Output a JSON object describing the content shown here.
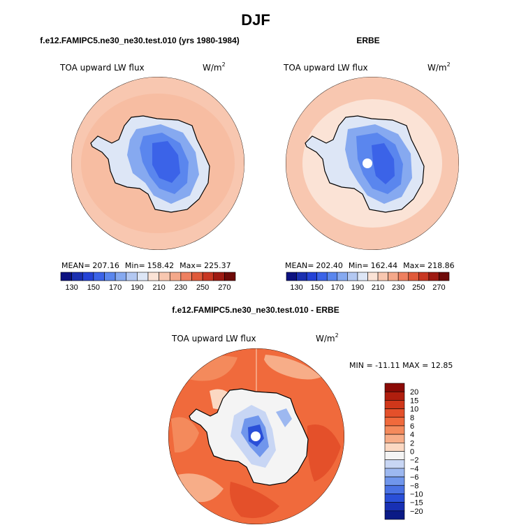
{
  "title": "DJF",
  "chart_data": [
    {
      "type": "heatmap",
      "projection": "south-polar-stereographic",
      "panel_title": "f.e12.FAMIPC5.ne30_ne30.test.010 (yrs 1980-1984)",
      "left_label": "TOA upward LW flux",
      "right_label": "W/m",
      "right_label_sup": "2",
      "stats": {
        "mean_label": "MEAN=",
        "mean": "207.16",
        "min_label": "Min=",
        "min": "158.42",
        "max_label": "Max=",
        "max": "225.37"
      },
      "colorbar_ticks": [
        "130",
        "150",
        "170",
        "190",
        "210",
        "230",
        "250",
        "270"
      ],
      "colorbar_colors": [
        "#0c1180",
        "#1a2fb0",
        "#2442d6",
        "#3b63e8",
        "#5a86ee",
        "#86a9f0",
        "#b3c8f2",
        "#dde6f6",
        "#fbe3d6",
        "#f8c7b0",
        "#f4a88a",
        "#ee8060",
        "#e05a3a",
        "#c83722",
        "#9e1a12",
        "#6e0a08"
      ],
      "value_range": [
        158.42,
        225.37
      ]
    },
    {
      "type": "heatmap",
      "projection": "south-polar-stereographic",
      "panel_title": "ERBE",
      "left_label": "TOA upward LW flux",
      "right_label": "W/m",
      "right_label_sup": "2",
      "stats": {
        "mean_label": "MEAN=",
        "mean": "202.40",
        "min_label": "Min=",
        "min": "162.44",
        "max_label": "Max=",
        "max": "218.86"
      },
      "colorbar_ticks": [
        "130",
        "150",
        "170",
        "190",
        "210",
        "230",
        "250",
        "270"
      ],
      "colorbar_colors": [
        "#0c1180",
        "#1a2fb0",
        "#2442d6",
        "#3b63e8",
        "#5a86ee",
        "#86a9f0",
        "#b3c8f2",
        "#dde6f6",
        "#fbe3d6",
        "#f8c7b0",
        "#f4a88a",
        "#ee8060",
        "#e05a3a",
        "#c83722",
        "#9e1a12",
        "#6e0a08"
      ],
      "value_range": [
        162.44,
        218.86
      ]
    },
    {
      "type": "heatmap",
      "projection": "south-polar-stereographic",
      "panel_title": "f.e12.FAMIPC5.ne30_ne30.test.010 - ERBE",
      "left_label": "TOA upward LW flux",
      "right_label": "W/m",
      "right_label_sup": "2",
      "minmax_text": "MIN = -11.11  MAX =  12.85",
      "colorbar_ticks": [
        "20",
        "15",
        "10",
        "8",
        "6",
        "4",
        "2",
        "0",
        "−2",
        "−4",
        "−6",
        "−8",
        "−10",
        "−15",
        "−20"
      ],
      "colorbar_colors": [
        "#8b0a06",
        "#b01e0e",
        "#d0371a",
        "#e4502a",
        "#f06a3c",
        "#f48a5c",
        "#f7ad88",
        "#fbd8c2",
        "#f4f4f4",
        "#c8d6f4",
        "#9db8f0",
        "#7096ec",
        "#4a72e4",
        "#2a4fd8",
        "#1830b4",
        "#0a1a86"
      ],
      "value_range": [
        -11.11,
        12.85
      ]
    }
  ]
}
